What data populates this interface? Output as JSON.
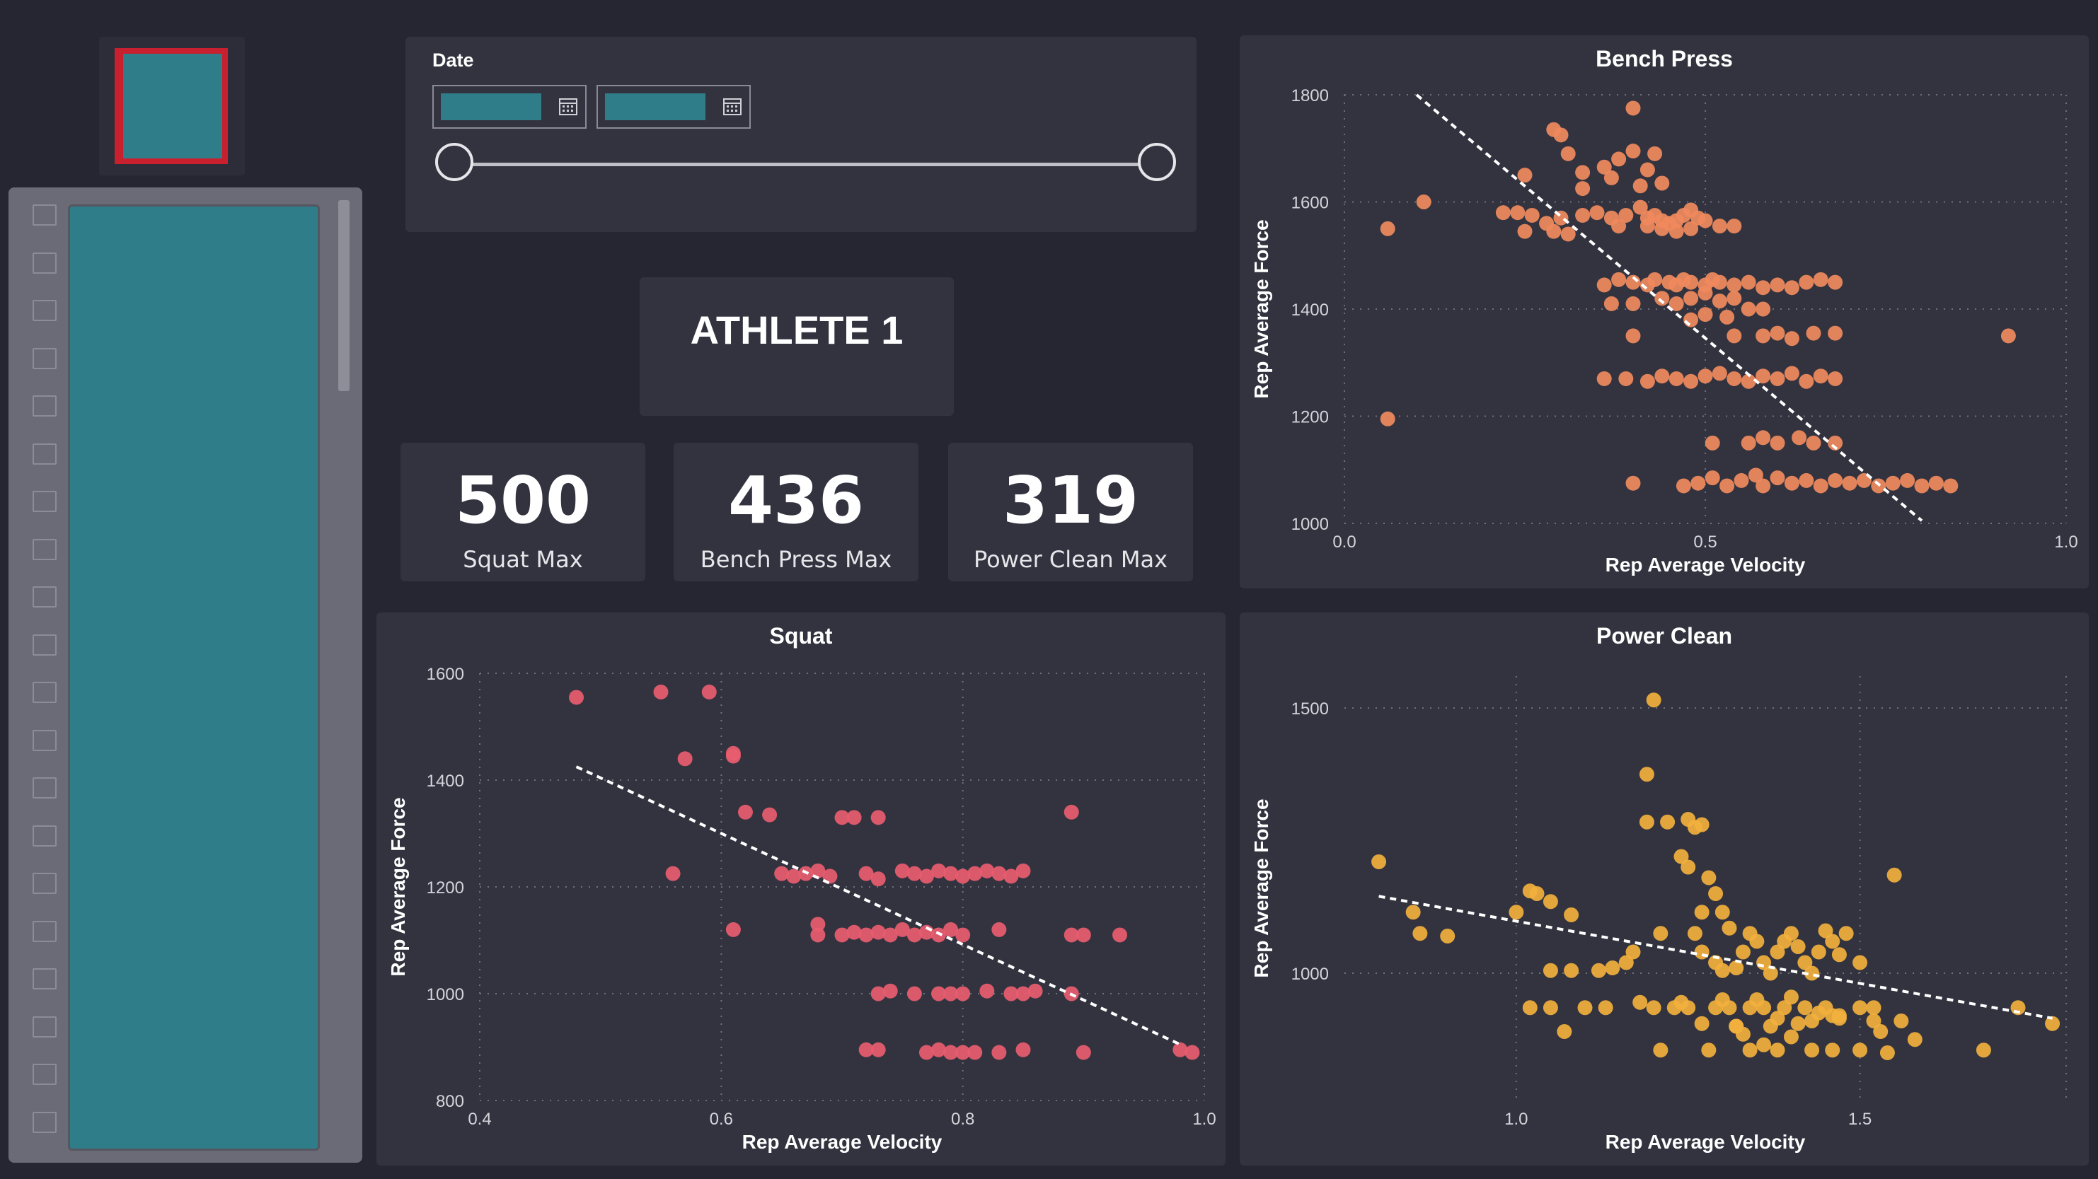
{
  "filter": {
    "label": "Date"
  },
  "athlete": {
    "name": "ATHLETE 1"
  },
  "kpis": [
    {
      "value": "500",
      "label": "Squat Max"
    },
    {
      "value": "436",
      "label": "Bench Press Max"
    },
    {
      "value": "319",
      "label": "Power Clean Max"
    }
  ],
  "colors": {
    "background": "#252631",
    "panel": "#32333f",
    "teal": "#2f7d89",
    "bench": "#f08a5d",
    "squat": "#e85c6f",
    "clean": "#f2b03d"
  },
  "chart_data": [
    {
      "id": "bench",
      "type": "scatter",
      "title": "Bench Press",
      "xlabel": "Rep Average Velocity",
      "ylabel": "Rep Average Force",
      "xlim": [
        0,
        1
      ],
      "ylim": [
        1000,
        1800
      ],
      "xticks": [
        "0.0",
        "0.5",
        "1.0"
      ],
      "xtick_values": [
        0,
        0.5,
        1
      ],
      "yticks": [
        "1000",
        "1200",
        "1400",
        "1600",
        "1800"
      ],
      "ytick_values": [
        1000,
        1200,
        1400,
        1600,
        1800
      ],
      "trend": [
        [
          0.1,
          1800
        ],
        [
          0.8,
          1005
        ]
      ],
      "points": [
        [
          0.06,
          1550
        ],
        [
          0.11,
          1600
        ],
        [
          0.06,
          1195
        ],
        [
          0.22,
          1580
        ],
        [
          0.24,
          1580
        ],
        [
          0.26,
          1575
        ],
        [
          0.28,
          1560
        ],
        [
          0.3,
          1570
        ],
        [
          0.33,
          1575
        ],
        [
          0.35,
          1580
        ],
        [
          0.37,
          1570
        ],
        [
          0.25,
          1545
        ],
        [
          0.29,
          1545
        ],
        [
          0.31,
          1540
        ],
        [
          0.38,
          1555
        ],
        [
          0.42,
          1555
        ],
        [
          0.25,
          1650
        ],
        [
          0.31,
          1690
        ],
        [
          0.29,
          1735
        ],
        [
          0.3,
          1725
        ],
        [
          0.33,
          1655
        ],
        [
          0.33,
          1625
        ],
        [
          0.36,
          1665
        ],
        [
          0.37,
          1645
        ],
        [
          0.38,
          1680
        ],
        [
          0.4,
          1695
        ],
        [
          0.41,
          1630
        ],
        [
          0.42,
          1660
        ],
        [
          0.44,
          1635
        ],
        [
          0.43,
          1690
        ],
        [
          0.4,
          1775
        ],
        [
          0.39,
          1575
        ],
        [
          0.41,
          1590
        ],
        [
          0.42,
          1570
        ],
        [
          0.43,
          1575
        ],
        [
          0.44,
          1565
        ],
        [
          0.45,
          1560
        ],
        [
          0.46,
          1565
        ],
        [
          0.47,
          1575
        ],
        [
          0.48,
          1585
        ],
        [
          0.49,
          1570
        ],
        [
          0.5,
          1565
        ],
        [
          0.52,
          1555
        ],
        [
          0.54,
          1555
        ],
        [
          0.44,
          1550
        ],
        [
          0.46,
          1545
        ],
        [
          0.48,
          1550
        ],
        [
          0.36,
          1445
        ],
        [
          0.38,
          1455
        ],
        [
          0.4,
          1450
        ],
        [
          0.42,
          1445
        ],
        [
          0.43,
          1455
        ],
        [
          0.45,
          1450
        ],
        [
          0.46,
          1445
        ],
        [
          0.47,
          1455
        ],
        [
          0.48,
          1450
        ],
        [
          0.5,
          1445
        ],
        [
          0.51,
          1455
        ],
        [
          0.52,
          1450
        ],
        [
          0.54,
          1445
        ],
        [
          0.56,
          1450
        ],
        [
          0.58,
          1440
        ],
        [
          0.6,
          1445
        ],
        [
          0.62,
          1440
        ],
        [
          0.64,
          1450
        ],
        [
          0.66,
          1455
        ],
        [
          0.68,
          1450
        ],
        [
          0.37,
          1410
        ],
        [
          0.4,
          1410
        ],
        [
          0.44,
          1420
        ],
        [
          0.46,
          1410
        ],
        [
          0.48,
          1420
        ],
        [
          0.5,
          1430
        ],
        [
          0.52,
          1415
        ],
        [
          0.54,
          1420
        ],
        [
          0.48,
          1380
        ],
        [
          0.5,
          1390
        ],
        [
          0.53,
          1385
        ],
        [
          0.56,
          1400
        ],
        [
          0.58,
          1400
        ],
        [
          0.4,
          1350
        ],
        [
          0.54,
          1350
        ],
        [
          0.58,
          1350
        ],
        [
          0.6,
          1355
        ],
        [
          0.62,
          1345
        ],
        [
          0.65,
          1355
        ],
        [
          0.68,
          1355
        ],
        [
          0.92,
          1350
        ],
        [
          0.36,
          1270
        ],
        [
          0.39,
          1270
        ],
        [
          0.42,
          1265
        ],
        [
          0.44,
          1275
        ],
        [
          0.46,
          1270
        ],
        [
          0.48,
          1265
        ],
        [
          0.5,
          1275
        ],
        [
          0.52,
          1280
        ],
        [
          0.54,
          1270
        ],
        [
          0.56,
          1265
        ],
        [
          0.58,
          1275
        ],
        [
          0.6,
          1270
        ],
        [
          0.62,
          1280
        ],
        [
          0.64,
          1265
        ],
        [
          0.66,
          1275
        ],
        [
          0.68,
          1270
        ],
        [
          0.51,
          1150
        ],
        [
          0.56,
          1150
        ],
        [
          0.58,
          1160
        ],
        [
          0.6,
          1150
        ],
        [
          0.63,
          1160
        ],
        [
          0.65,
          1150
        ],
        [
          0.68,
          1150
        ],
        [
          0.4,
          1075
        ],
        [
          0.47,
          1070
        ],
        [
          0.49,
          1075
        ],
        [
          0.51,
          1085
        ],
        [
          0.53,
          1070
        ],
        [
          0.55,
          1080
        ],
        [
          0.57,
          1090
        ],
        [
          0.58,
          1070
        ],
        [
          0.6,
          1085
        ],
        [
          0.62,
          1075
        ],
        [
          0.64,
          1080
        ],
        [
          0.66,
          1070
        ],
        [
          0.68,
          1080
        ],
        [
          0.7,
          1075
        ],
        [
          0.72,
          1080
        ],
        [
          0.74,
          1070
        ],
        [
          0.76,
          1075
        ],
        [
          0.78,
          1080
        ],
        [
          0.8,
          1070
        ],
        [
          0.82,
          1075
        ],
        [
          0.84,
          1070
        ]
      ]
    },
    {
      "id": "squat",
      "type": "scatter",
      "title": "Squat",
      "xlabel": "Rep Average Velocity",
      "ylabel": "Rep Average Force",
      "xlim": [
        0.4,
        1
      ],
      "ylim": [
        800,
        1600
      ],
      "xticks": [
        "0.4",
        "0.6",
        "0.8",
        "1.0"
      ],
      "xtick_values": [
        0.4,
        0.6,
        0.8,
        1
      ],
      "yticks": [
        "800",
        "1000",
        "1200",
        "1400",
        "1600"
      ],
      "ytick_values": [
        800,
        1000,
        1200,
        1400,
        1600
      ],
      "trend": [
        [
          0.48,
          1425
        ],
        [
          0.98,
          905
        ]
      ],
      "points": [
        [
          0.48,
          1555
        ],
        [
          0.55,
          1565
        ],
        [
          0.59,
          1565
        ],
        [
          0.57,
          1440
        ],
        [
          0.61,
          1450
        ],
        [
          0.61,
          1445
        ],
        [
          0.62,
          1340
        ],
        [
          0.64,
          1335
        ],
        [
          0.56,
          1225
        ],
        [
          0.61,
          1120
        ],
        [
          0.7,
          1330
        ],
        [
          0.71,
          1330
        ],
        [
          0.73,
          1330
        ],
        [
          0.89,
          1340
        ],
        [
          0.65,
          1225
        ],
        [
          0.66,
          1220
        ],
        [
          0.67,
          1225
        ],
        [
          0.68,
          1230
        ],
        [
          0.69,
          1220
        ],
        [
          0.72,
          1225
        ],
        [
          0.73,
          1215
        ],
        [
          0.75,
          1230
        ],
        [
          0.76,
          1225
        ],
        [
          0.77,
          1220
        ],
        [
          0.78,
          1230
        ],
        [
          0.79,
          1225
        ],
        [
          0.8,
          1220
        ],
        [
          0.81,
          1225
        ],
        [
          0.82,
          1230
        ],
        [
          0.83,
          1225
        ],
        [
          0.84,
          1220
        ],
        [
          0.85,
          1230
        ],
        [
          0.68,
          1130
        ],
        [
          0.68,
          1110
        ],
        [
          0.7,
          1110
        ],
        [
          0.71,
          1115
        ],
        [
          0.72,
          1110
        ],
        [
          0.73,
          1115
        ],
        [
          0.74,
          1110
        ],
        [
          0.75,
          1120
        ],
        [
          0.76,
          1110
        ],
        [
          0.77,
          1115
        ],
        [
          0.78,
          1110
        ],
        [
          0.79,
          1120
        ],
        [
          0.8,
          1110
        ],
        [
          0.83,
          1120
        ],
        [
          0.89,
          1110
        ],
        [
          0.9,
          1110
        ],
        [
          0.93,
          1110
        ],
        [
          0.73,
          1000
        ],
        [
          0.74,
          1005
        ],
        [
          0.76,
          1000
        ],
        [
          0.78,
          1000
        ],
        [
          0.79,
          1000
        ],
        [
          0.8,
          1000
        ],
        [
          0.82,
          1005
        ],
        [
          0.84,
          1000
        ],
        [
          0.85,
          1000
        ],
        [
          0.86,
          1005
        ],
        [
          0.89,
          1000
        ],
        [
          0.72,
          895
        ],
        [
          0.73,
          895
        ],
        [
          0.77,
          890
        ],
        [
          0.78,
          895
        ],
        [
          0.79,
          890
        ],
        [
          0.8,
          890
        ],
        [
          0.81,
          890
        ],
        [
          0.83,
          890
        ],
        [
          0.85,
          895
        ],
        [
          0.9,
          890
        ],
        [
          0.98,
          895
        ],
        [
          0.99,
          890
        ]
      ]
    },
    {
      "id": "clean",
      "type": "scatter",
      "title": "Power Clean",
      "xlabel": "Rep Average Velocity",
      "ylabel": "Rep Average Force",
      "xlim": [
        0.75,
        1.8
      ],
      "ylim": [
        760,
        1560
      ],
      "xticks": [
        "1.0",
        "1.5"
      ],
      "xtick_values": [
        1.0,
        1.5
      ],
      "yticks": [
        "1000",
        "1500"
      ],
      "ytick_values": [
        1000,
        1500
      ],
      "trend": [
        [
          0.8,
          1145
        ],
        [
          1.78,
          915
        ]
      ],
      "points": [
        [
          0.8,
          1210
        ],
        [
          0.85,
          1115
        ],
        [
          0.86,
          1075
        ],
        [
          0.9,
          1070
        ],
        [
          1.0,
          1115
        ],
        [
          1.02,
          1155
        ],
        [
          1.03,
          1150
        ],
        [
          1.05,
          1135
        ],
        [
          1.08,
          1110
        ],
        [
          1.02,
          935
        ],
        [
          1.05,
          935
        ],
        [
          1.07,
          890
        ],
        [
          1.1,
          935
        ],
        [
          1.05,
          1005
        ],
        [
          1.08,
          1005
        ],
        [
          1.12,
          1005
        ],
        [
          1.14,
          1010
        ],
        [
          1.16,
          1020
        ],
        [
          1.13,
          935
        ],
        [
          1.17,
          1040
        ],
        [
          1.2,
          1515
        ],
        [
          1.19,
          1375
        ],
        [
          1.19,
          1285
        ],
        [
          1.21,
          1075
        ],
        [
          1.18,
          945
        ],
        [
          1.2,
          935
        ],
        [
          1.21,
          855
        ],
        [
          1.23,
          935
        ],
        [
          1.22,
          1285
        ],
        [
          1.25,
          1290
        ],
        [
          1.26,
          1275
        ],
        [
          1.27,
          1280
        ],
        [
          1.24,
          1220
        ],
        [
          1.25,
          1200
        ],
        [
          1.28,
          1180
        ],
        [
          1.29,
          1150
        ],
        [
          1.3,
          1115
        ],
        [
          1.31,
          1085
        ],
        [
          1.27,
          1115
        ],
        [
          1.26,
          1075
        ],
        [
          1.27,
          1040
        ],
        [
          1.29,
          1020
        ],
        [
          1.3,
          1005
        ],
        [
          1.32,
          1010
        ],
        [
          1.33,
          1040
        ],
        [
          1.34,
          1075
        ],
        [
          1.35,
          1060
        ],
        [
          1.36,
          1020
        ],
        [
          1.37,
          1000
        ],
        [
          1.38,
          1040
        ],
        [
          1.39,
          1060
        ],
        [
          1.4,
          1075
        ],
        [
          1.41,
          1050
        ],
        [
          1.42,
          1020
        ],
        [
          1.43,
          1000
        ],
        [
          1.44,
          1040
        ],
        [
          1.45,
          1080
        ],
        [
          1.46,
          1060
        ],
        [
          1.47,
          1035
        ],
        [
          1.48,
          1075
        ],
        [
          1.24,
          945
        ],
        [
          1.25,
          935
        ],
        [
          1.27,
          905
        ],
        [
          1.29,
          935
        ],
        [
          1.3,
          950
        ],
        [
          1.31,
          935
        ],
        [
          1.32,
          900
        ],
        [
          1.33,
          885
        ],
        [
          1.34,
          935
        ],
        [
          1.35,
          950
        ],
        [
          1.36,
          935
        ],
        [
          1.37,
          900
        ],
        [
          1.38,
          915
        ],
        [
          1.39,
          935
        ],
        [
          1.4,
          955
        ],
        [
          1.41,
          905
        ],
        [
          1.42,
          935
        ],
        [
          1.43,
          910
        ],
        [
          1.44,
          925
        ],
        [
          1.45,
          935
        ],
        [
          1.46,
          920
        ],
        [
          1.47,
          915
        ],
        [
          1.5,
          935
        ],
        [
          1.52,
          910
        ],
        [
          1.53,
          890
        ],
        [
          1.28,
          855
        ],
        [
          1.34,
          855
        ],
        [
          1.36,
          865
        ],
        [
          1.38,
          855
        ],
        [
          1.43,
          855
        ],
        [
          1.46,
          855
        ],
        [
          1.5,
          855
        ],
        [
          1.54,
          850
        ],
        [
          1.55,
          1185
        ],
        [
          1.5,
          1020
        ],
        [
          1.52,
          935
        ],
        [
          1.56,
          910
        ],
        [
          1.58,
          875
        ],
        [
          1.68,
          855
        ],
        [
          1.73,
          935
        ],
        [
          1.78,
          905
        ],
        [
          1.32,
          900
        ],
        [
          1.4,
          880
        ],
        [
          1.47,
          920
        ]
      ]
    }
  ]
}
